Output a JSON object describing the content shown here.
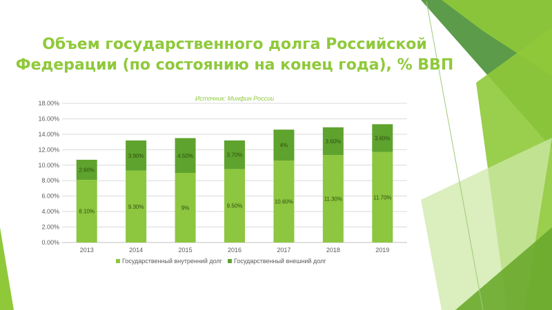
{
  "slide": {
    "title": "Объем государственного долга Российской Федерации (по состоянию на конец года), % ВВП",
    "source": "Источник: Минфин России"
  },
  "colors": {
    "title": "#8fc93a",
    "internal": "#8dc63f",
    "external": "#5ea32e",
    "decor_dark": "#3f8a2a",
    "decor_mid": "#8fc93a",
    "decor_light": "#cde8a8"
  },
  "chart_data": {
    "type": "bar",
    "stacked": true,
    "categories": [
      "2013",
      "2014",
      "2015",
      "2016",
      "2017",
      "2018",
      "2019"
    ],
    "series": [
      {
        "name": "Государственный внутренний долг",
        "values": [
          8.1,
          9.3,
          9,
          9.5,
          10.6,
          11.3,
          11.7
        ],
        "labels": [
          "8.10%",
          "9.30%",
          "9%",
          "9.50%",
          "10.60%",
          "11.30%",
          "11.70%"
        ]
      },
      {
        "name": "Государственный внешний долг",
        "values": [
          2.6,
          3.9,
          4.5,
          3.7,
          4,
          3.6,
          3.6
        ],
        "labels": [
          "2.60%",
          "3.90%",
          "4.50%",
          "3.70%",
          "4%",
          "3.60%",
          "3.60%"
        ]
      }
    ],
    "yticks": [
      "0.00%",
      "2.00%",
      "4.00%",
      "6.00%",
      "8.00%",
      "10.00%",
      "12.00%",
      "14.00%",
      "16.00%",
      "18.00%"
    ],
    "ylim": [
      0,
      18
    ],
    "grid": true,
    "legend_position": "bottom"
  }
}
